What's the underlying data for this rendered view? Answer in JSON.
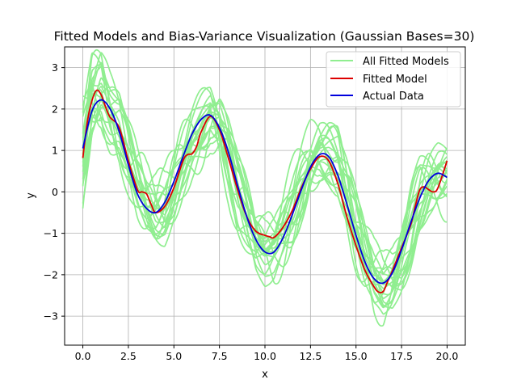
{
  "chart_data": {
    "type": "line",
    "title": "Fitted Models and Bias-Variance Visualization (Gaussian Bases=30)",
    "xlabel": "x",
    "ylabel": "y",
    "xlim": [
      -1.0,
      21.0
    ],
    "ylim": [
      -3.7,
      3.5
    ],
    "xticks": [
      0.0,
      2.5,
      5.0,
      7.5,
      10.0,
      12.5,
      15.0,
      17.5,
      20.0
    ],
    "xtick_labels": [
      "0.0",
      "2.5",
      "5.0",
      "7.5",
      "10.0",
      "12.5",
      "15.0",
      "17.5",
      "20.0"
    ],
    "yticks": [
      -3,
      -2,
      -1,
      0,
      1,
      2,
      3
    ],
    "ytick_labels": [
      "−3",
      "−2",
      "−1",
      "0",
      "1",
      "2",
      "3"
    ],
    "grid": true,
    "legend_position": "top-right",
    "colors": {
      "all_fitted": "#90ee90",
      "fitted": "#dd0000",
      "actual": "#0000dd"
    },
    "series": [
      {
        "name": "All Fitted Models",
        "note": "20 overlapping light-green curves",
        "x": [
          0.0,
          0.5,
          1.0,
          1.5,
          2.0,
          2.5,
          3.0,
          3.5,
          4.0,
          4.5,
          5.0,
          5.5,
          6.0,
          6.5,
          7.0,
          7.5,
          8.0,
          8.5,
          9.0,
          9.5,
          10.0,
          10.5,
          11.0,
          11.5,
          12.0,
          12.5,
          13.0,
          13.5,
          14.0,
          14.5,
          15.0,
          15.5,
          16.0,
          16.5,
          17.0,
          17.5,
          18.0,
          18.5,
          19.0,
          19.5,
          20.0
        ],
        "y": [
          0.9,
          2.2,
          2.4,
          1.9,
          1.6,
          0.9,
          0.2,
          -0.3,
          -0.5,
          -0.4,
          0.1,
          0.7,
          1.2,
          1.5,
          1.8,
          1.6,
          0.9,
          0.0,
          -0.6,
          -1.2,
          -1.4,
          -1.3,
          -0.9,
          -0.4,
          0.2,
          0.7,
          0.9,
          0.8,
          0.6,
          -0.1,
          -0.9,
          -1.6,
          -2.1,
          -2.3,
          -2.1,
          -1.6,
          -0.9,
          -0.2,
          0.2,
          0.4,
          0.4
        ]
      },
      {
        "name": "Fitted Model",
        "x": [
          0.0,
          0.25,
          0.5,
          0.75,
          1.0,
          1.25,
          1.5,
          2.0,
          2.5,
          3.0,
          3.25,
          3.5,
          3.75,
          4.0,
          4.5,
          5.0,
          5.5,
          5.75,
          6.0,
          6.25,
          6.5,
          7.0,
          7.5,
          8.0,
          8.5,
          9.0,
          9.5,
          10.0,
          10.25,
          10.5,
          11.0,
          11.5,
          12.0,
          12.5,
          13.0,
          13.5,
          14.0,
          14.5,
          15.0,
          15.5,
          16.0,
          16.25,
          16.5,
          16.75,
          17.0,
          17.5,
          18.0,
          18.25,
          18.5,
          18.75,
          19.0,
          19.25,
          19.5,
          20.0
        ],
        "y": [
          0.82,
          1.7,
          2.2,
          2.45,
          2.35,
          2.05,
          1.8,
          1.55,
          0.75,
          0.05,
          0.0,
          -0.05,
          -0.3,
          -0.5,
          -0.35,
          0.1,
          0.75,
          0.9,
          0.92,
          1.1,
          1.45,
          1.82,
          1.5,
          0.8,
          0.05,
          -0.6,
          -0.95,
          -1.05,
          -1.08,
          -1.1,
          -0.85,
          -0.45,
          0.1,
          0.55,
          0.85,
          0.75,
          0.2,
          -0.6,
          -1.3,
          -1.9,
          -2.3,
          -2.42,
          -2.4,
          -2.15,
          -1.9,
          -1.35,
          -0.8,
          -0.35,
          0.05,
          0.12,
          0.05,
          0.0,
          0.1,
          0.75
        ]
      },
      {
        "name": "Actual Data",
        "x": [
          0.0,
          0.5,
          1.0,
          1.5,
          2.0,
          2.5,
          3.0,
          3.5,
          4.0,
          4.5,
          5.0,
          5.5,
          6.0,
          6.5,
          7.0,
          7.5,
          8.0,
          8.5,
          9.0,
          9.5,
          10.0,
          10.5,
          11.0,
          11.5,
          12.0,
          12.5,
          13.0,
          13.5,
          14.0,
          14.5,
          15.0,
          15.5,
          16.0,
          16.5,
          17.0,
          17.5,
          18.0,
          18.5,
          19.0,
          19.5,
          20.0
        ],
        "y": [
          1.05,
          1.95,
          2.22,
          2.0,
          1.45,
          0.65,
          -0.05,
          -0.4,
          -0.5,
          -0.25,
          0.25,
          0.85,
          1.4,
          1.75,
          1.85,
          1.55,
          0.95,
          0.15,
          -0.6,
          -1.15,
          -1.45,
          -1.45,
          -1.1,
          -0.55,
          0.05,
          0.6,
          0.9,
          0.85,
          0.4,
          -0.3,
          -1.05,
          -1.7,
          -2.1,
          -2.2,
          -1.95,
          -1.4,
          -0.75,
          -0.15,
          0.28,
          0.45,
          0.35
        ]
      }
    ]
  }
}
